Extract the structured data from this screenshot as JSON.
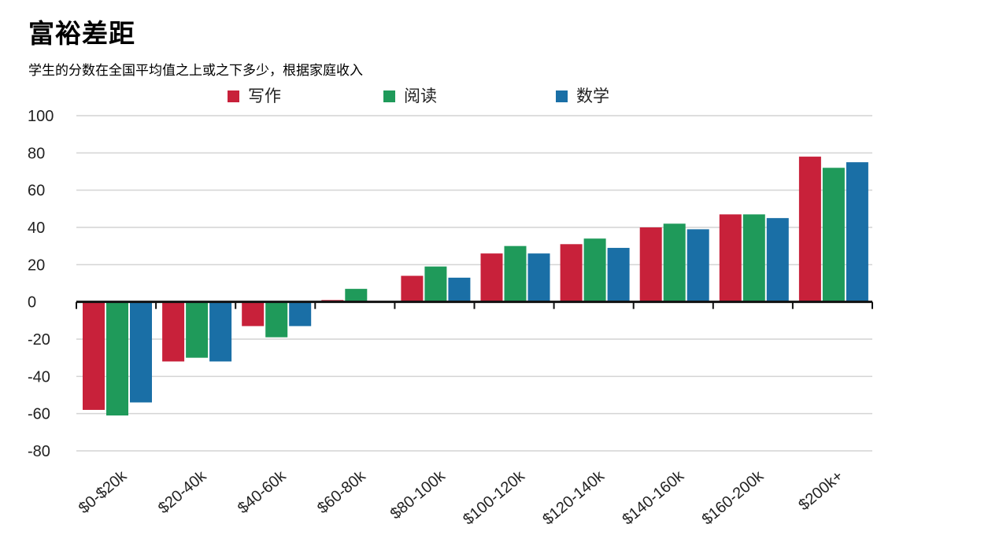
{
  "title": "富裕差距",
  "subtitle": "学生的分数在全国平均值之上或之下多少，根据家庭收入",
  "chart_data": {
    "type": "bar",
    "categories": [
      "$0-$20k",
      "$20-40k",
      "$40-60k",
      "$60-80k",
      "$80-100k",
      "$100-120k",
      "$120-140k",
      "$140-160k",
      "$160-200k",
      "$200k+"
    ],
    "series": [
      {
        "name": "写作",
        "color": "#c8213a",
        "values": [
          -58,
          -32,
          -13,
          1,
          14,
          26,
          31,
          40,
          47,
          78
        ]
      },
      {
        "name": "阅读",
        "color": "#1f9a5a",
        "values": [
          -61,
          -30,
          -19,
          7,
          19,
          30,
          34,
          42,
          47,
          72
        ]
      },
      {
        "name": "数学",
        "color": "#1a6fa6",
        "values": [
          -54,
          -32,
          -13,
          0,
          13,
          26,
          29,
          39,
          45,
          75
        ]
      }
    ],
    "ylim": [
      -80,
      100
    ],
    "yticks": [
      "100",
      "80",
      "60",
      "40",
      "20",
      "0",
      "-20",
      "-40",
      "-60",
      "-80"
    ],
    "grid": true,
    "legend": "top"
  }
}
